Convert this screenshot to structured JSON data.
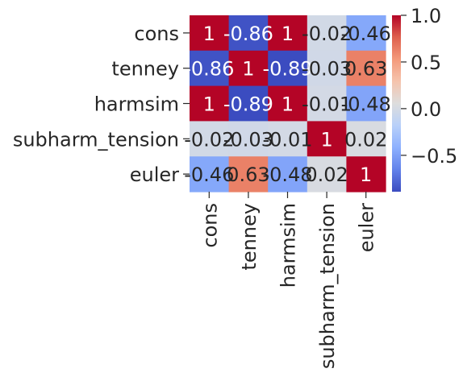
{
  "chart_data": {
    "type": "heatmap",
    "title": "",
    "xlabel": "",
    "ylabel": "",
    "row_labels": [
      "cons",
      "tenney",
      "harmsim",
      "subharm_tension",
      "euler"
    ],
    "col_labels": [
      "cons",
      "tenney",
      "harmsim",
      "subharm_tension",
      "euler"
    ],
    "values": [
      [
        1,
        -0.86,
        1,
        -0.02,
        -0.46
      ],
      [
        -0.86,
        1,
        -0.89,
        -0.03,
        0.63
      ],
      [
        1,
        -0.89,
        1,
        -0.01,
        -0.48
      ],
      [
        -0.02,
        -0.03,
        -0.01,
        1,
        0.02
      ],
      [
        -0.46,
        0.63,
        -0.48,
        0.02,
        1
      ]
    ],
    "annotations": [
      [
        "1",
        "-0.86",
        "1",
        "-0.02",
        "-0.46"
      ],
      [
        "-0.86",
        "1",
        "-0.89",
        "-0.03",
        "0.63"
      ],
      [
        "1",
        "-0.89",
        "1",
        "-0.01",
        "-0.48"
      ],
      [
        "-0.02",
        "-0.03",
        "-0.01",
        "1",
        "0.02"
      ],
      [
        "-0.46",
        "0.63",
        "-0.48",
        "0.02",
        "1"
      ]
    ],
    "colormap": "coolwarm",
    "vmin": -0.89,
    "vmax": 1,
    "colorbar_ticks": [
      {
        "value": 1.0,
        "label": "1.0"
      },
      {
        "value": 0.5,
        "label": "0.5"
      },
      {
        "value": 0.0,
        "label": "0.0"
      },
      {
        "value": -0.5,
        "label": "−0.5"
      }
    ],
    "grid": false
  }
}
